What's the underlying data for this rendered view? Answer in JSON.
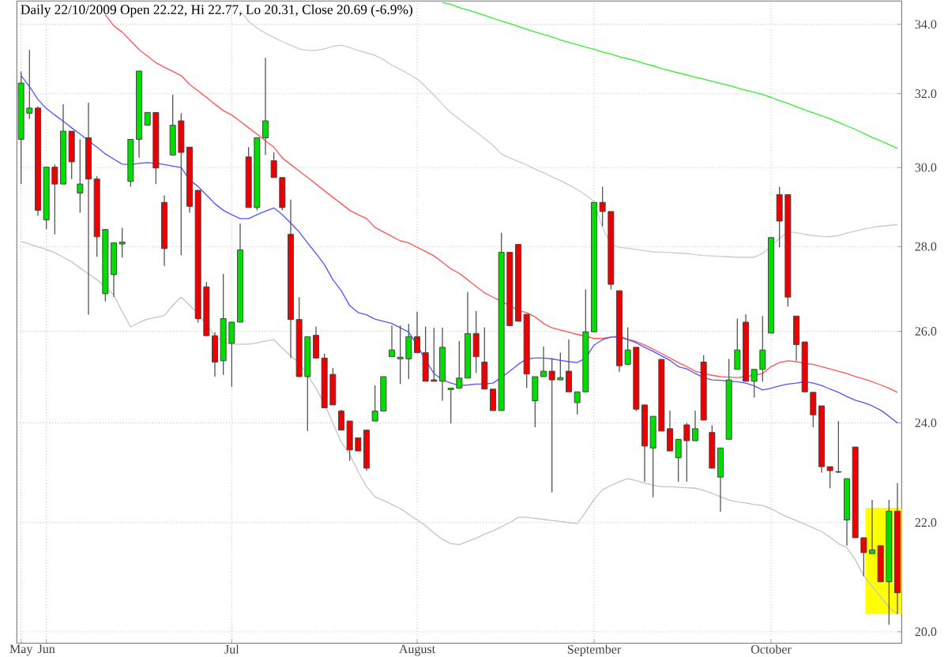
{
  "chart_data": {
    "type": "candlestick",
    "title": "Daily 22/10/2009 Open 22.22, Hi 22.77, Lo 20.31, Close 20.69 (-6.9%)",
    "categories": [
      "May",
      null,
      null,
      "Jun",
      null,
      null,
      null,
      null,
      null,
      null,
      null,
      null,
      null,
      null,
      null,
      null,
      null,
      null,
      null,
      null,
      null,
      null,
      null,
      null,
      null,
      "Jul",
      null,
      null,
      null,
      null,
      null,
      null,
      null,
      null,
      null,
      null,
      null,
      null,
      null,
      null,
      null,
      null,
      null,
      null,
      null,
      null,
      null,
      "August",
      null,
      null,
      null,
      null,
      null,
      null,
      null,
      null,
      null,
      null,
      null,
      null,
      null,
      null,
      null,
      null,
      null,
      null,
      null,
      null,
      "September",
      null,
      null,
      null,
      null,
      null,
      null,
      null,
      null,
      null,
      null,
      null,
      null,
      null,
      null,
      null,
      null,
      null,
      null,
      null,
      null,
      "October",
      null,
      null,
      null,
      null,
      null,
      null,
      null,
      null,
      null,
      null,
      null,
      null,
      null,
      null,
      null
    ],
    "ohlc": [
      [
        30.75,
        32.63,
        29.57,
        32.3
      ],
      [
        31.46,
        33.25,
        31.3,
        31.6
      ],
      [
        31.6,
        31.65,
        28.77,
        28.9
      ],
      [
        28.66,
        30.01,
        28.43,
        30.01
      ],
      [
        30.01,
        30.08,
        28.3,
        29.57
      ],
      [
        29.57,
        31.71,
        29.57,
        30.97
      ],
      [
        30.97,
        30.97,
        29.7,
        30.15
      ],
      [
        29.34,
        30.75,
        28.84,
        29.57
      ],
      [
        30.79,
        31.75,
        26.38,
        29.7
      ],
      [
        29.7,
        29.77,
        27.75,
        28.24
      ],
      [
        26.87,
        28.42,
        26.69,
        28.42
      ],
      [
        27.32,
        28.09,
        26.79,
        28.09
      ],
      [
        28.06,
        28.46,
        27.73,
        28.11
      ],
      [
        29.64,
        30.75,
        29.5,
        30.75
      ],
      [
        30.75,
        32.64,
        30.26,
        32.64
      ],
      [
        31.13,
        31.48,
        31.13,
        31.48
      ],
      [
        31.48,
        31.48,
        29.57,
        29.99
      ],
      [
        29.1,
        29.28,
        27.53,
        27.95
      ],
      [
        30.33,
        31.97,
        30.33,
        31.13
      ],
      [
        31.25,
        31.46,
        27.79,
        30.4
      ],
      [
        30.54,
        30.54,
        28.84,
        29.0
      ],
      [
        29.41,
        29.41,
        26.2,
        26.29
      ],
      [
        27.03,
        27.15,
        25.9,
        25.9
      ],
      [
        25.9,
        25.98,
        24.99,
        25.31
      ],
      [
        25.34,
        27.34,
        25.03,
        26.29
      ],
      [
        25.73,
        26.21,
        24.77,
        26.21
      ],
      [
        26.21,
        28.57,
        26.21,
        27.92
      ],
      [
        30.28,
        30.54,
        28.97,
        28.97
      ],
      [
        28.97,
        30.79,
        28.9,
        30.79
      ],
      [
        30.79,
        33.02,
        30.33,
        31.25
      ],
      [
        30.18,
        30.4,
        29.74,
        29.74
      ],
      [
        29.74,
        29.74,
        28.9,
        28.97
      ],
      [
        28.3,
        29.17,
        25.4,
        26.27
      ],
      [
        26.27,
        26.79,
        24.99,
        24.99
      ],
      [
        24.99,
        25.88,
        23.83,
        25.88
      ],
      [
        25.91,
        26.11,
        25.4,
        25.4
      ],
      [
        25.4,
        25.5,
        24.32,
        24.32
      ],
      [
        25.04,
        25.18,
        24.38,
        24.38
      ],
      [
        24.25,
        24.28,
        23.85,
        23.85
      ],
      [
        24.04,
        24.04,
        23.22,
        23.44
      ],
      [
        23.69,
        23.69,
        23.42,
        23.42
      ],
      [
        23.85,
        23.85,
        23.02,
        23.07
      ],
      [
        24.04,
        24.8,
        24.04,
        24.25
      ],
      [
        24.25,
        24.99,
        24.25,
        24.99
      ],
      [
        25.43,
        26.13,
        25.43,
        25.58
      ],
      [
        25.38,
        26.13,
        24.83,
        25.42
      ],
      [
        25.38,
        26.17,
        24.94,
        25.88
      ],
      [
        25.88,
        26.45,
        25.52,
        25.52
      ],
      [
        25.52,
        26.11,
        24.89,
        24.89
      ],
      [
        24.92,
        26.08,
        24.89,
        24.89
      ],
      [
        24.89,
        26.08,
        24.47,
        25.64
      ],
      [
        24.71,
        24.74,
        23.99,
        24.74
      ],
      [
        24.74,
        25.78,
        24.74,
        24.96
      ],
      [
        24.96,
        26.91,
        24.96,
        25.95
      ],
      [
        25.95,
        26.47,
        25.07,
        25.43
      ],
      [
        25.31,
        26.09,
        24.72,
        24.72
      ],
      [
        24.72,
        24.72,
        24.26,
        24.26
      ],
      [
        24.26,
        28.34,
        24.26,
        27.86
      ],
      [
        27.86,
        27.86,
        26.13,
        26.13
      ],
      [
        28.05,
        28.05,
        26.23,
        26.23
      ],
      [
        26.39,
        26.39,
        24.74,
        25.05
      ],
      [
        24.47,
        24.99,
        23.91,
        24.99
      ],
      [
        24.99,
        25.66,
        24.99,
        25.11
      ],
      [
        25.11,
        25.4,
        22.59,
        24.92
      ],
      [
        24.92,
        25.52,
        24.92,
        24.97
      ],
      [
        25.11,
        25.82,
        24.66,
        24.66
      ],
      [
        24.43,
        24.66,
        24.18,
        24.66
      ],
      [
        24.66,
        26.97,
        24.66,
        25.99
      ],
      [
        25.99,
        29.1,
        25.99,
        29.1
      ],
      [
        29.1,
        29.5,
        28.5,
        28.87
      ],
      [
        28.87,
        28.87,
        26.97,
        27.09
      ],
      [
        26.94,
        26.94,
        25.1,
        25.23
      ],
      [
        25.26,
        26.09,
        25.26,
        25.58
      ],
      [
        25.64,
        25.64,
        24.25,
        24.29
      ],
      [
        24.38,
        24.38,
        22.8,
        23.52
      ],
      [
        23.48,
        24.14,
        22.49,
        24.14
      ],
      [
        25.37,
        25.37,
        23.83,
        23.83
      ],
      [
        23.88,
        24.26,
        23.42,
        23.42
      ],
      [
        23.28,
        23.66,
        22.8,
        23.66
      ],
      [
        23.96,
        24.0,
        22.8,
        23.63
      ],
      [
        23.63,
        24.26,
        23.63,
        23.88
      ],
      [
        25.31,
        25.46,
        24.06,
        24.06
      ],
      [
        23.8,
        23.95,
        23.07,
        23.07
      ],
      [
        22.89,
        23.48,
        22.21,
        23.48
      ],
      [
        23.66,
        25.38,
        23.66,
        24.92
      ],
      [
        25.15,
        26.29,
        25.15,
        25.58
      ],
      [
        26.21,
        26.39,
        24.89,
        24.89
      ],
      [
        24.89,
        25.15,
        24.54,
        25.15
      ],
      [
        25.15,
        26.35,
        24.88,
        25.58
      ],
      [
        25.96,
        28.22,
        25.96,
        28.22
      ],
      [
        29.3,
        29.5,
        27.98,
        28.63
      ],
      [
        29.3,
        29.3,
        26.57,
        26.79
      ],
      [
        26.35,
        26.35,
        25.34,
        25.7
      ],
      [
        25.76,
        25.76,
        24.66,
        24.66
      ],
      [
        24.65,
        24.65,
        23.91,
        24.17
      ],
      [
        24.36,
        24.36,
        22.98,
        23.1
      ],
      [
        23.1,
        23.1,
        22.67,
        23.02
      ],
      [
        23.0,
        24.04,
        22.97,
        22.99
      ],
      [
        22.05,
        22.86,
        21.56,
        22.86
      ],
      [
        23.5,
        23.5,
        21.71,
        21.71
      ],
      [
        21.71,
        21.71,
        20.99,
        21.43
      ],
      [
        21.41,
        22.44,
        21.41,
        21.48
      ],
      [
        21.56,
        21.56,
        20.89,
        20.89
      ],
      [
        20.89,
        22.44,
        20.12,
        22.22
      ],
      [
        22.22,
        22.77,
        20.31,
        20.69
      ]
    ],
    "colors": [
      "#00dd00",
      "#00dd00",
      "#ee0000",
      "#00dd00",
      "#ee0000",
      "#00dd00",
      "#ee0000",
      "#00dd00",
      "#ee0000",
      "#ee0000",
      "#00dd00",
      "#00dd00",
      "#00dd00",
      "#00dd00",
      "#00dd00",
      "#00dd00",
      "#ee0000",
      "#ee0000",
      "#00dd00",
      "#ee0000",
      "#ee0000",
      "#ee0000",
      "#ee0000",
      "#ee0000",
      "#00dd00",
      "#00dd00",
      "#00dd00",
      "#ee0000",
      "#00dd00",
      "#00dd00",
      "#ee0000",
      "#ee0000",
      "#ee0000",
      "#ee0000",
      "#00dd00",
      "#ee0000",
      "#ee0000",
      "#ee0000",
      "#ee0000",
      "#ee0000",
      "#ee0000",
      "#ee0000",
      "#00dd00",
      "#00dd00",
      "#00dd00",
      "#00dd00",
      "#00dd00",
      "#ee0000",
      "#ee0000",
      "#ee0000",
      "#00dd00",
      "#00dd00",
      "#00dd00",
      "#00dd00",
      "#ee0000",
      "#ee0000",
      "#ee0000",
      "#00dd00",
      "#ee0000",
      "#ee0000",
      "#ee0000",
      "#00dd00",
      "#00dd00",
      "#ee0000",
      "#00dd00",
      "#ee0000",
      "#00dd00",
      "#00dd00",
      "#00dd00",
      "#ee0000",
      "#ee0000",
      "#ee0000",
      "#00dd00",
      "#ee0000",
      "#ee0000",
      "#00dd00",
      "#ee0000",
      "#ee0000",
      "#00dd00",
      "#ee0000",
      "#00dd00",
      "#ee0000",
      "#ee0000",
      "#00dd00",
      "#00dd00",
      "#00dd00",
      "#ee0000",
      "#00dd00",
      "#00dd00",
      "#00dd00",
      "#ee0000",
      "#ee0000",
      "#ee0000",
      "#ee0000",
      "#ee0000",
      "#ee0000",
      "#ee0000",
      "#ee0000",
      "#00dd00",
      "#ee0000",
      "#ee0000",
      "#00dd00",
      "#ee0000",
      "#00dd00",
      "#ee0000"
    ],
    "series": [
      {
        "type": "line",
        "color": "#cccccc",
        "values": [
          null,
          null,
          null,
          null,
          null,
          null,
          null,
          null,
          null,
          null,
          null,
          null,
          null,
          null,
          null,
          null,
          null,
          null,
          null,
          null,
          null,
          null,
          null,
          null,
          null,
          null,
          34.41,
          34.09,
          33.89,
          33.74,
          33.61,
          33.49,
          33.39,
          33.28,
          33.23,
          33.23,
          33.28,
          33.35,
          33.39,
          33.32,
          33.23,
          33.16,
          33.09,
          32.97,
          32.81,
          32.69,
          32.55,
          32.42,
          32.2,
          31.96,
          31.71,
          31.47,
          31.3,
          31.12,
          30.95,
          30.77,
          30.59,
          30.36,
          30.25,
          30.16,
          30.07,
          29.96,
          29.86,
          29.76,
          29.66,
          29.55,
          29.43,
          29.29,
          29.12,
          28.47,
          28.04,
          27.98,
          27.96,
          27.93,
          27.9,
          27.87,
          27.86,
          27.85,
          27.84,
          27.83,
          27.8,
          27.78,
          27.77,
          27.76,
          27.75,
          27.74,
          27.74,
          27.74,
          27.83,
          28.0,
          28.2,
          28.36,
          28.34,
          28.3,
          28.27,
          28.25,
          28.24,
          28.27,
          28.33,
          28.38,
          28.43,
          28.47,
          28.5,
          28.52,
          28.54
        ]
      },
      {
        "type": "line",
        "color": "#c4c4c4",
        "values": [
          28.12,
          28.06,
          27.99,
          27.93,
          27.85,
          27.74,
          27.63,
          27.48,
          27.34,
          27.2,
          27.02,
          26.84,
          26.45,
          26.1,
          26.2,
          26.28,
          26.32,
          26.36,
          26.6,
          26.79,
          26.6,
          26.4,
          26.15,
          25.9,
          25.75,
          25.71,
          25.71,
          25.71,
          25.74,
          25.78,
          25.81,
          25.62,
          25.45,
          25.29,
          25.02,
          24.74,
          24.4,
          24.0,
          23.6,
          23.35,
          23.0,
          22.7,
          22.5,
          22.43,
          22.35,
          22.27,
          22.16,
          22.05,
          21.94,
          21.8,
          21.68,
          21.6,
          21.58,
          21.64,
          21.7,
          21.78,
          21.84,
          21.92,
          22.0,
          22.1,
          22.1,
          22.08,
          22.06,
          22.04,
          22.02,
          22.0,
          21.98,
          22.2,
          22.45,
          22.64,
          22.72,
          22.8,
          22.86,
          22.82,
          22.77,
          22.73,
          22.7,
          22.7,
          22.69,
          22.68,
          22.67,
          22.63,
          22.57,
          22.5,
          22.44,
          22.4,
          22.38,
          22.35,
          22.33,
          22.27,
          22.18,
          22.1,
          22.04,
          21.97,
          21.9,
          21.83,
          21.72,
          21.6,
          21.52,
          21.3,
          21.0,
          20.81,
          20.62,
          20.43,
          20.3
        ]
      },
      {
        "type": "line",
        "color": "#33ee33",
        "values": [
          null,
          null,
          null,
          null,
          null,
          null,
          null,
          null,
          null,
          null,
          null,
          null,
          null,
          null,
          null,
          null,
          null,
          null,
          null,
          null,
          null,
          null,
          null,
          null,
          null,
          null,
          null,
          null,
          null,
          null,
          null,
          null,
          null,
          null,
          null,
          null,
          null,
          null,
          null,
          null,
          null,
          null,
          null,
          null,
          null,
          null,
          null,
          null,
          null,
          null,
          34.65,
          34.6,
          34.5,
          34.43,
          34.35,
          34.27,
          34.18,
          34.1,
          34.02,
          33.94,
          33.85,
          33.78,
          33.7,
          33.63,
          33.54,
          33.47,
          33.4,
          33.33,
          33.27,
          33.19,
          33.13,
          33.05,
          32.99,
          32.93,
          32.85,
          32.79,
          32.71,
          32.65,
          32.59,
          32.53,
          32.47,
          32.41,
          32.35,
          32.29,
          32.23,
          32.16,
          32.1,
          32.04,
          31.98,
          31.9,
          31.81,
          31.73,
          31.64,
          31.55,
          31.47,
          31.39,
          31.31,
          31.21,
          31.11,
          31.02,
          30.91,
          30.8,
          30.71,
          30.61,
          30.51
        ]
      },
      {
        "type": "line",
        "color": "#ff5555",
        "values": [
          null,
          null,
          null,
          null,
          null,
          null,
          null,
          null,
          null,
          null,
          34.28,
          33.96,
          33.77,
          33.51,
          33.26,
          33.07,
          32.88,
          32.75,
          32.63,
          32.51,
          32.26,
          32.08,
          31.9,
          31.71,
          31.53,
          31.41,
          31.24,
          31.06,
          30.89,
          30.71,
          30.54,
          30.25,
          30.08,
          29.91,
          29.74,
          29.57,
          29.4,
          29.23,
          29.07,
          28.9,
          28.79,
          28.69,
          28.47,
          28.36,
          28.25,
          28.14,
          28.09,
          27.98,
          27.88,
          27.77,
          27.62,
          27.46,
          27.35,
          27.2,
          27.04,
          26.89,
          26.79,
          26.69,
          26.59,
          26.48,
          26.43,
          26.33,
          26.18,
          26.08,
          26.03,
          25.98,
          25.93,
          25.89,
          25.84,
          25.84,
          25.87,
          25.89,
          25.82,
          25.77,
          25.69,
          25.6,
          25.5,
          25.4,
          25.3,
          25.21,
          25.11,
          25.06,
          25.02,
          24.99,
          24.98,
          24.97,
          24.99,
          25.02,
          25.06,
          25.21,
          25.3,
          25.34,
          25.32,
          25.28,
          25.26,
          25.21,
          25.16,
          25.11,
          25.06,
          24.99,
          24.94,
          24.88,
          24.81,
          24.74,
          24.65
        ]
      },
      {
        "type": "line",
        "color": "#5555ff",
        "values": [
          32.51,
          32.2,
          31.84,
          31.59,
          31.41,
          31.24,
          31.06,
          30.89,
          30.71,
          30.54,
          30.36,
          30.22,
          30.09,
          30.08,
          30.11,
          30.13,
          30.11,
          30.08,
          30.04,
          30.0,
          29.68,
          29.51,
          29.29,
          29.07,
          28.9,
          28.79,
          28.69,
          28.69,
          28.79,
          28.88,
          28.96,
          28.79,
          28.58,
          28.36,
          28.09,
          27.83,
          27.56,
          27.2,
          26.94,
          26.59,
          26.43,
          26.38,
          26.28,
          26.23,
          26.18,
          26.08,
          25.98,
          25.69,
          25.35,
          25.06,
          24.92,
          24.85,
          24.8,
          24.81,
          24.83,
          24.83,
          24.85,
          24.97,
          25.11,
          25.26,
          25.38,
          25.4,
          25.4,
          25.38,
          25.35,
          25.32,
          25.3,
          25.4,
          25.69,
          25.81,
          25.87,
          25.87,
          25.81,
          25.74,
          25.64,
          25.55,
          25.45,
          25.35,
          25.21,
          25.16,
          25.06,
          24.97,
          24.92,
          24.91,
          24.89,
          24.88,
          24.85,
          24.79,
          24.7,
          24.74,
          24.79,
          24.83,
          24.85,
          24.88,
          24.85,
          24.8,
          24.72,
          24.65,
          24.56,
          24.48,
          24.43,
          24.36,
          24.27,
          24.14,
          24.0
        ]
      }
    ],
    "ylim": [
      19.8,
      34.7
    ],
    "yticks": [
      {
        "value": 20,
        "label": "20.0"
      },
      {
        "value": 22,
        "label": "22.0"
      },
      {
        "value": 24,
        "label": "24.0"
      },
      {
        "value": 26,
        "label": "26.0"
      },
      {
        "value": 28,
        "label": "28.0"
      },
      {
        "value": 30,
        "label": "30.0"
      },
      {
        "value": 32,
        "label": "32.0"
      },
      {
        "value": 34,
        "label": "34.0"
      }
    ],
    "log": true,
    "grid": true
  }
}
